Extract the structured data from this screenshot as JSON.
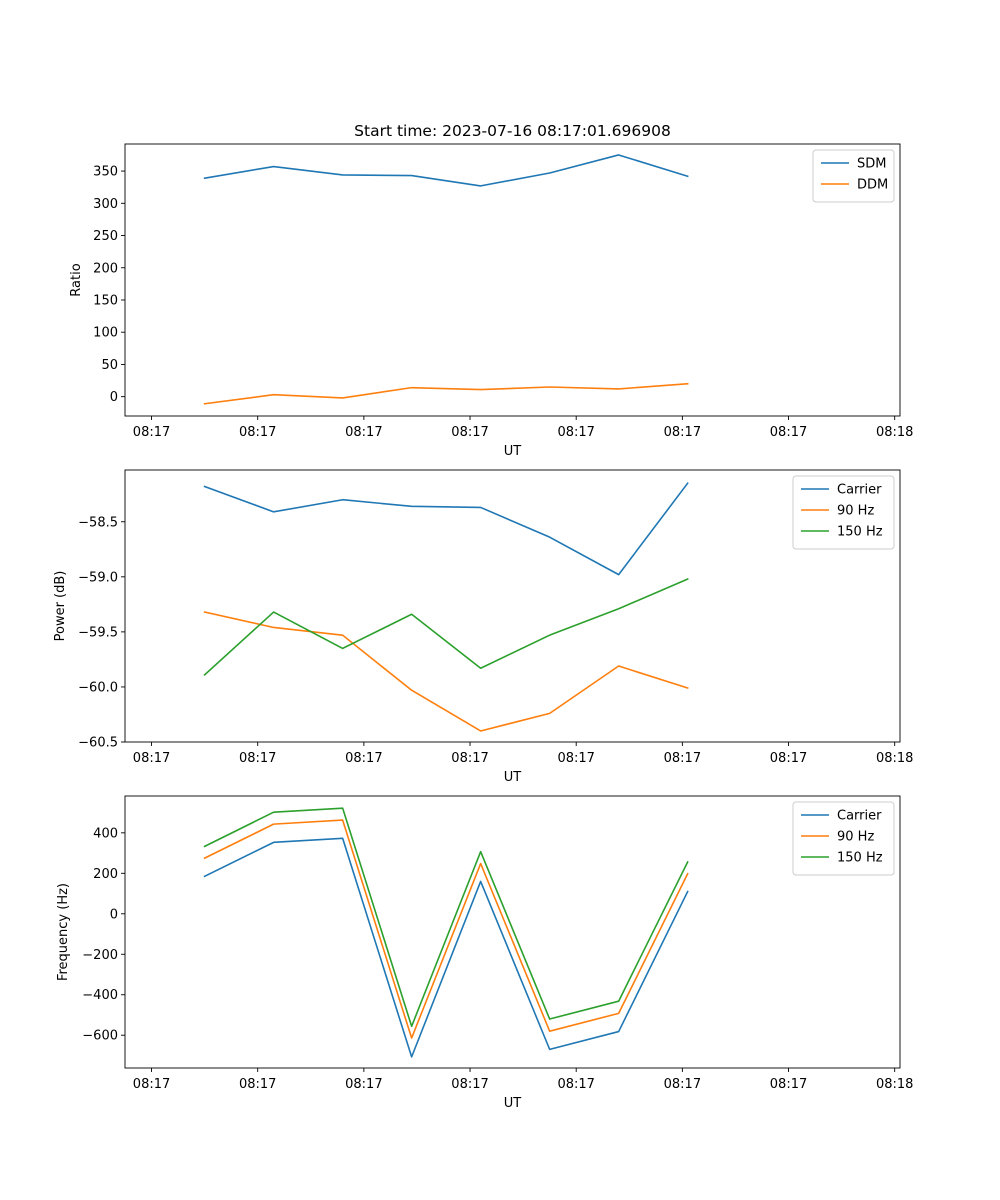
{
  "chart_data": [
    {
      "type": "line",
      "title": "Start time: 2023-07-16 08:17:01.696908",
      "xlabel": "UT",
      "ylabel": "Ratio",
      "x_tick_labels": [
        "08:17",
        "08:17",
        "08:17",
        "08:17",
        "08:17",
        "08:17",
        "08:17",
        "08:18"
      ],
      "x_tick_values": [
        0,
        1,
        2,
        3,
        4,
        5,
        6,
        7
      ],
      "xlim": [
        -0.25,
        7.05
      ],
      "x": [
        0.5,
        1.15,
        1.8,
        2.45,
        3.1,
        3.75,
        4.4,
        5.05
      ],
      "ylim": [
        -30,
        392
      ],
      "yticks": [
        0,
        50,
        100,
        150,
        200,
        250,
        300,
        350
      ],
      "legend_position": "top-right",
      "series": [
        {
          "name": "SDM",
          "color": "#1f77b4",
          "values": [
            339,
            357,
            344,
            343,
            327,
            347,
            375,
            342
          ]
        },
        {
          "name": "DDM",
          "color": "#ff7f0e",
          "values": [
            -11,
            3,
            -2,
            14,
            11,
            15,
            12,
            20
          ]
        }
      ]
    },
    {
      "type": "line",
      "title": "",
      "xlabel": "UT",
      "ylabel": "Power (dB)",
      "x_tick_labels": [
        "08:17",
        "08:17",
        "08:17",
        "08:17",
        "08:17",
        "08:17",
        "08:17",
        "08:18"
      ],
      "x_tick_values": [
        0,
        1,
        2,
        3,
        4,
        5,
        6,
        7
      ],
      "xlim": [
        -0.25,
        7.05
      ],
      "x": [
        0.5,
        1.15,
        1.8,
        2.45,
        3.1,
        3.75,
        4.4,
        5.05
      ],
      "ylim": [
        -60.5,
        -58.03
      ],
      "yticks": [
        -60.5,
        -60.0,
        -59.5,
        -59.0,
        -58.5
      ],
      "ytick_labels": [
        "−60.5",
        "−60.0",
        "−59.5",
        "−59.0",
        "−58.5"
      ],
      "legend_position": "top-right",
      "series": [
        {
          "name": "Carrier",
          "color": "#1f77b4",
          "values": [
            -58.18,
            -58.41,
            -58.3,
            -58.36,
            -58.37,
            -58.64,
            -58.98,
            -58.15
          ]
        },
        {
          "name": "90 Hz",
          "color": "#ff7f0e",
          "values": [
            -59.32,
            -59.46,
            -59.53,
            -60.03,
            -60.4,
            -60.24,
            -59.81,
            -60.01
          ]
        },
        {
          "name": "150 Hz",
          "color": "#2ca02c",
          "values": [
            -59.89,
            -59.32,
            -59.65,
            -59.34,
            -59.83,
            -59.53,
            -59.29,
            -59.02
          ]
        }
      ]
    },
    {
      "type": "line",
      "title": "",
      "xlabel": "UT",
      "ylabel": "Frequency (Hz)",
      "x_tick_labels": [
        "08:17",
        "08:17",
        "08:17",
        "08:17",
        "08:17",
        "08:17",
        "08:17",
        "08:18"
      ],
      "x_tick_values": [
        0,
        1,
        2,
        3,
        4,
        5,
        6,
        7
      ],
      "xlim": [
        -0.25,
        7.05
      ],
      "x": [
        0.5,
        1.15,
        1.8,
        2.45,
        3.1,
        3.75,
        4.4,
        5.05
      ],
      "ylim": [
        -762,
        582
      ],
      "yticks": [
        -600,
        -400,
        -200,
        0,
        200,
        400
      ],
      "ytick_labels": [
        "−600",
        "−400",
        "−200",
        "0",
        "200",
        "400"
      ],
      "legend_position": "top-right",
      "series": [
        {
          "name": "Carrier",
          "color": "#1f77b4",
          "values": [
            185,
            353,
            373,
            -707,
            160,
            -670,
            -582,
            110
          ]
        },
        {
          "name": "90 Hz",
          "color": "#ff7f0e",
          "values": [
            275,
            443,
            463,
            -614,
            248,
            -580,
            -492,
            198
          ]
        },
        {
          "name": "150 Hz",
          "color": "#2ca02c",
          "values": [
            333,
            502,
            522,
            -556,
            307,
            -520,
            -432,
            256
          ]
        }
      ]
    }
  ]
}
